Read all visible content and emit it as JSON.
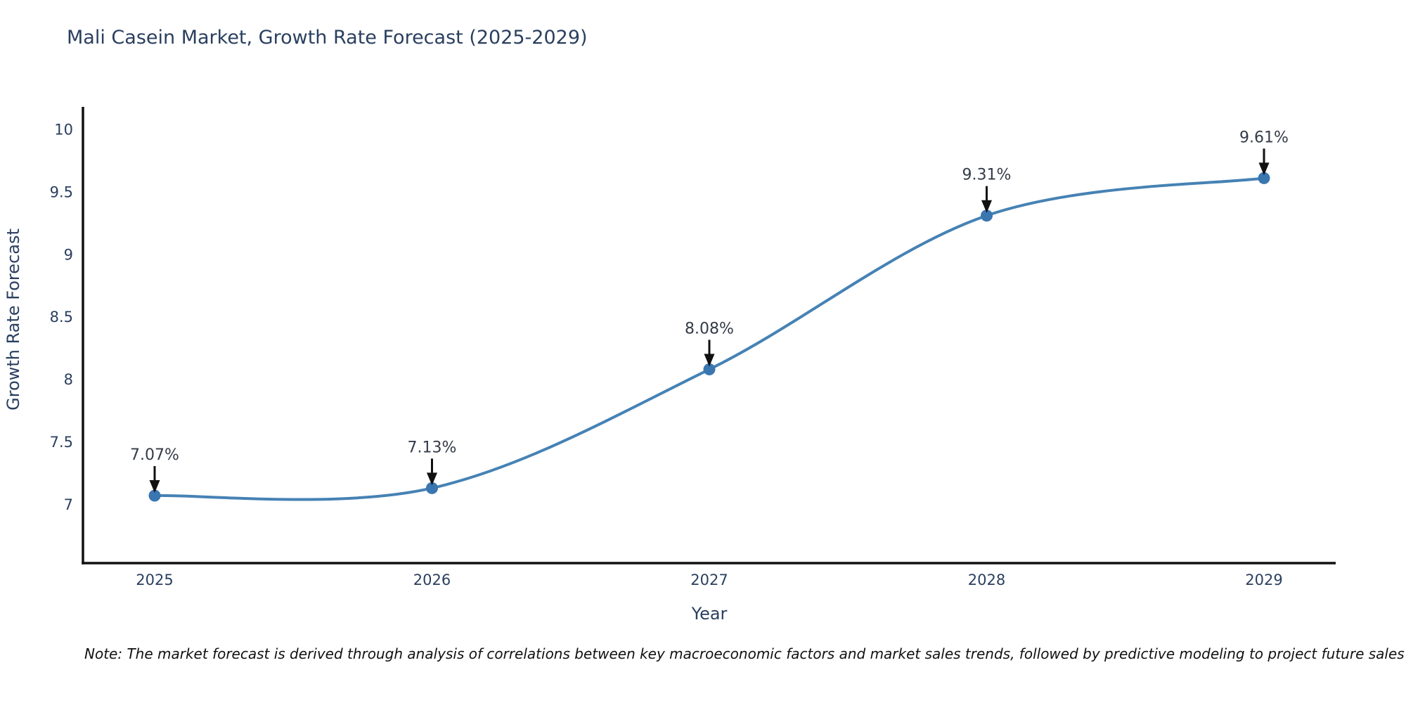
{
  "title": "Mali Casein Market, Growth Rate Forecast (2025-2029)",
  "note": "Note: The market forecast is derived through analysis of correlations between key macroeconomic factors and market sales trends, followed by predictive modeling to project future sales",
  "chart_data": {
    "type": "line",
    "title": "Mali Casein Market, Growth Rate Forecast (2025-2029)",
    "xlabel": "Year",
    "ylabel": "Growth Rate Forecast",
    "x": [
      2025,
      2026,
      2027,
      2028,
      2029
    ],
    "series": [
      {
        "name": "Growth Rate Forecast",
        "values": [
          7.07,
          7.13,
          8.08,
          9.31,
          9.61
        ]
      }
    ],
    "point_labels": [
      "7.07%",
      "7.13%",
      "8.08%",
      "9.31%",
      "9.61%"
    ],
    "yticks": [
      7,
      7.5,
      8,
      8.5,
      9,
      9.5,
      10
    ],
    "ylim": [
      6.53,
      10.18
    ],
    "grid": false,
    "legend": "none",
    "line_shape": "spline",
    "colors": {
      "line": "#4682b4",
      "marker": "#3a76b0",
      "axis": "#111111",
      "tick_text": "#2a3f5f",
      "axis_title_text": "#2a3f5f",
      "annotation_text": "#333c48",
      "arrow": "#111111",
      "title_text": "#2a3f5f",
      "note_text": "#111111"
    }
  }
}
